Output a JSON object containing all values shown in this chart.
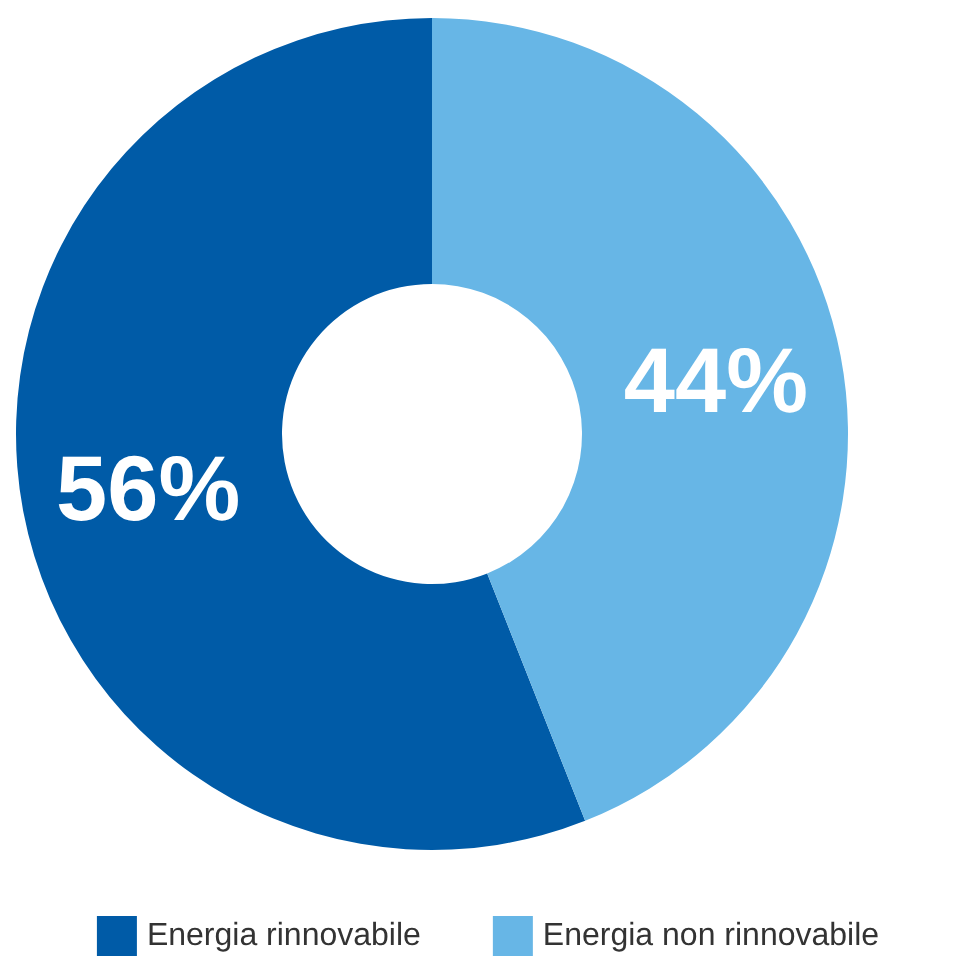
{
  "chart_data": {
    "type": "donut",
    "categories": [
      "Energia rinnovabile",
      "Energia non rinnovabile"
    ],
    "values": [
      56,
      44
    ],
    "colors": [
      "#005ba7",
      "#67b6e6"
    ],
    "value_labels": [
      "56%",
      "44%"
    ],
    "legend": "bottom"
  }
}
